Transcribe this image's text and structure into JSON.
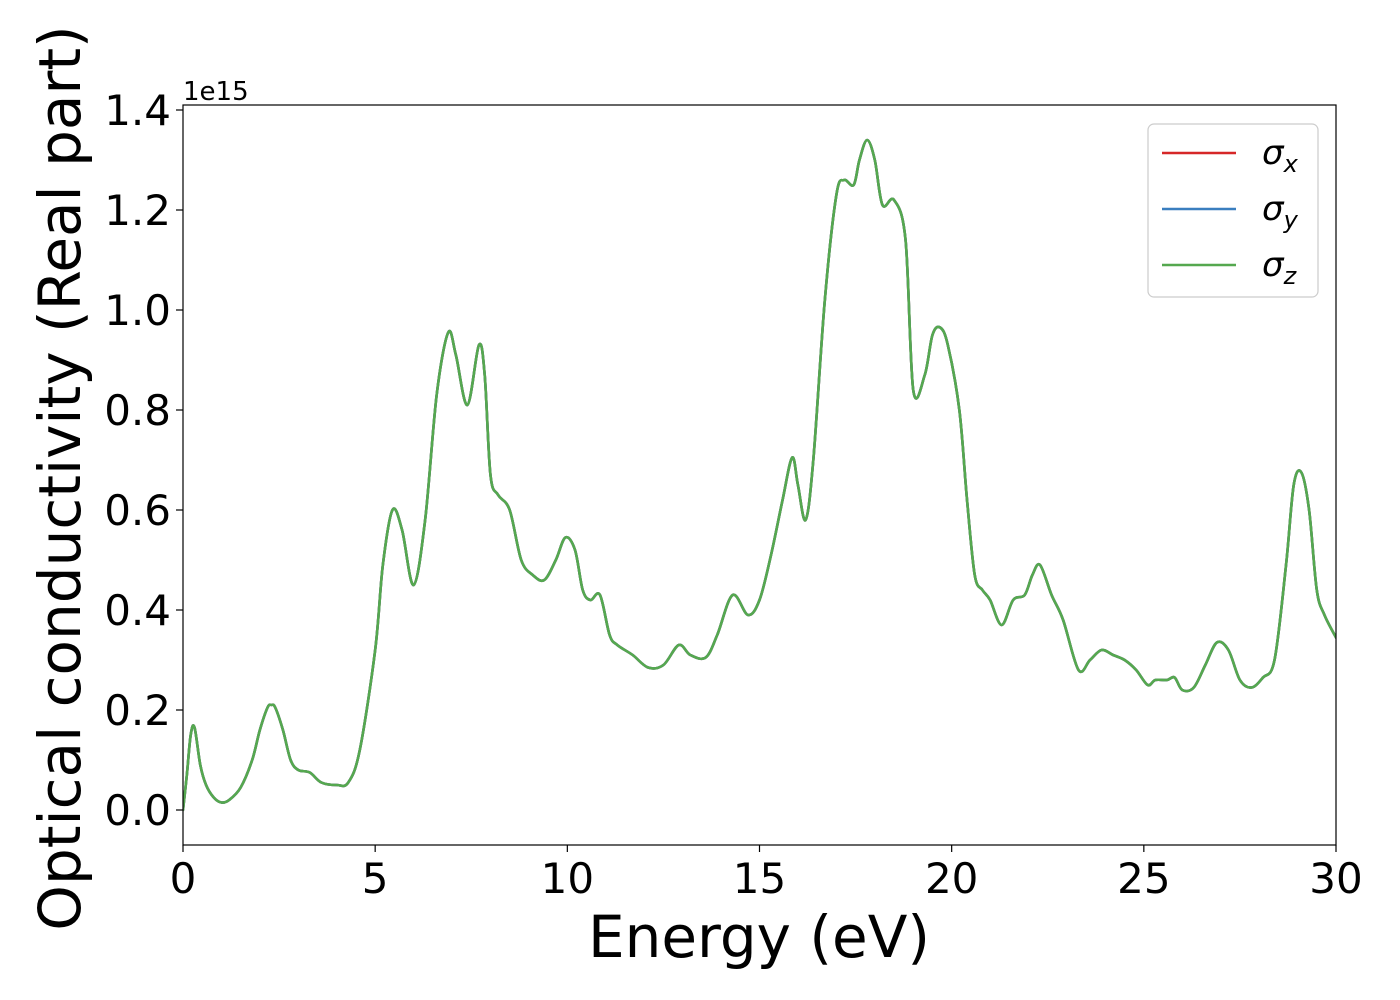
{
  "chart_data": {
    "type": "line",
    "xlabel": "Energy (eV)",
    "ylabel": "Optical conductivity (Real part)",
    "offset_label": "1e15",
    "xlim": [
      0,
      30
    ],
    "ylim": [
      -0.07,
      1.41
    ],
    "xticks": [
      0,
      5,
      10,
      15,
      20,
      25,
      30
    ],
    "xtick_labels": [
      "0",
      "5",
      "10",
      "15",
      "20",
      "25",
      "30"
    ],
    "yticks": [
      0.0,
      0.2,
      0.4,
      0.6,
      0.8,
      1.0,
      1.2,
      1.4
    ],
    "ytick_labels": [
      "0.0",
      "0.2",
      "0.4",
      "0.6",
      "0.8",
      "1.0",
      "1.2",
      "1.4"
    ],
    "grid": false,
    "legend_position": "top-right",
    "series": [
      {
        "name": "σx",
        "name_base": "σ",
        "name_sub": "x",
        "color": "#d62728"
      },
      {
        "name": "σy",
        "name_base": "σ",
        "name_sub": "y",
        "color": "#3a7ebf"
      },
      {
        "name": "σz",
        "name_base": "σ",
        "name_sub": "z",
        "color": "#55a84f"
      }
    ],
    "x": [
      0,
      0.1,
      0.2,
      0.3,
      0.45,
      0.6,
      0.8,
      1.0,
      1.2,
      1.5,
      1.8,
      2.0,
      2.2,
      2.3,
      2.4,
      2.6,
      2.8,
      3.0,
      3.3,
      3.6,
      4.0,
      4.3,
      4.6,
      5.0,
      5.2,
      5.45,
      5.7,
      6.0,
      6.3,
      6.6,
      6.9,
      7.1,
      7.4,
      7.7,
      7.85,
      8.0,
      8.2,
      8.5,
      8.8,
      9.1,
      9.4,
      9.7,
      9.95,
      10.2,
      10.4,
      10.6,
      10.85,
      11.1,
      11.3,
      11.7,
      12.1,
      12.5,
      12.9,
      13.2,
      13.6,
      13.9,
      14.3,
      14.7,
      15.0,
      15.3,
      15.6,
      15.85,
      16.0,
      16.2,
      16.4,
      16.7,
      17.0,
      17.2,
      17.45,
      17.6,
      17.8,
      18.0,
      18.2,
      18.5,
      18.8,
      19.0,
      19.3,
      19.5,
      19.7,
      19.9,
      20.2,
      20.4,
      20.6,
      20.8,
      21.0,
      21.3,
      21.6,
      21.9,
      22.1,
      22.3,
      22.6,
      22.9,
      23.3,
      23.6,
      23.9,
      24.2,
      24.5,
      24.8,
      25.1,
      25.3,
      25.6,
      25.8,
      26.0,
      26.3,
      26.6,
      26.9,
      27.2,
      27.5,
      27.8,
      28.1,
      28.4,
      28.7,
      28.9,
      29.1,
      29.3,
      29.5,
      29.7,
      30.0
    ],
    "y": [
      0.0,
      0.07,
      0.15,
      0.165,
      0.09,
      0.05,
      0.025,
      0.015,
      0.02,
      0.045,
      0.1,
      0.16,
      0.205,
      0.21,
      0.205,
      0.16,
      0.1,
      0.08,
      0.075,
      0.055,
      0.05,
      0.055,
      0.12,
      0.32,
      0.49,
      0.6,
      0.56,
      0.45,
      0.58,
      0.83,
      0.955,
      0.91,
      0.81,
      0.93,
      0.87,
      0.67,
      0.63,
      0.6,
      0.5,
      0.47,
      0.46,
      0.5,
      0.545,
      0.52,
      0.44,
      0.42,
      0.43,
      0.35,
      0.33,
      0.31,
      0.285,
      0.29,
      0.33,
      0.31,
      0.305,
      0.35,
      0.43,
      0.39,
      0.42,
      0.51,
      0.62,
      0.705,
      0.65,
      0.58,
      0.7,
      1.02,
      1.23,
      1.26,
      1.25,
      1.3,
      1.34,
      1.3,
      1.21,
      1.22,
      1.14,
      0.84,
      0.87,
      0.95,
      0.965,
      0.93,
      0.8,
      0.62,
      0.47,
      0.44,
      0.42,
      0.37,
      0.42,
      0.43,
      0.47,
      0.49,
      0.43,
      0.38,
      0.28,
      0.3,
      0.32,
      0.31,
      0.3,
      0.28,
      0.25,
      0.26,
      0.26,
      0.265,
      0.24,
      0.245,
      0.29,
      0.335,
      0.32,
      0.26,
      0.245,
      0.265,
      0.3,
      0.49,
      0.65,
      0.675,
      0.6,
      0.44,
      0.39,
      0.345
    ]
  }
}
